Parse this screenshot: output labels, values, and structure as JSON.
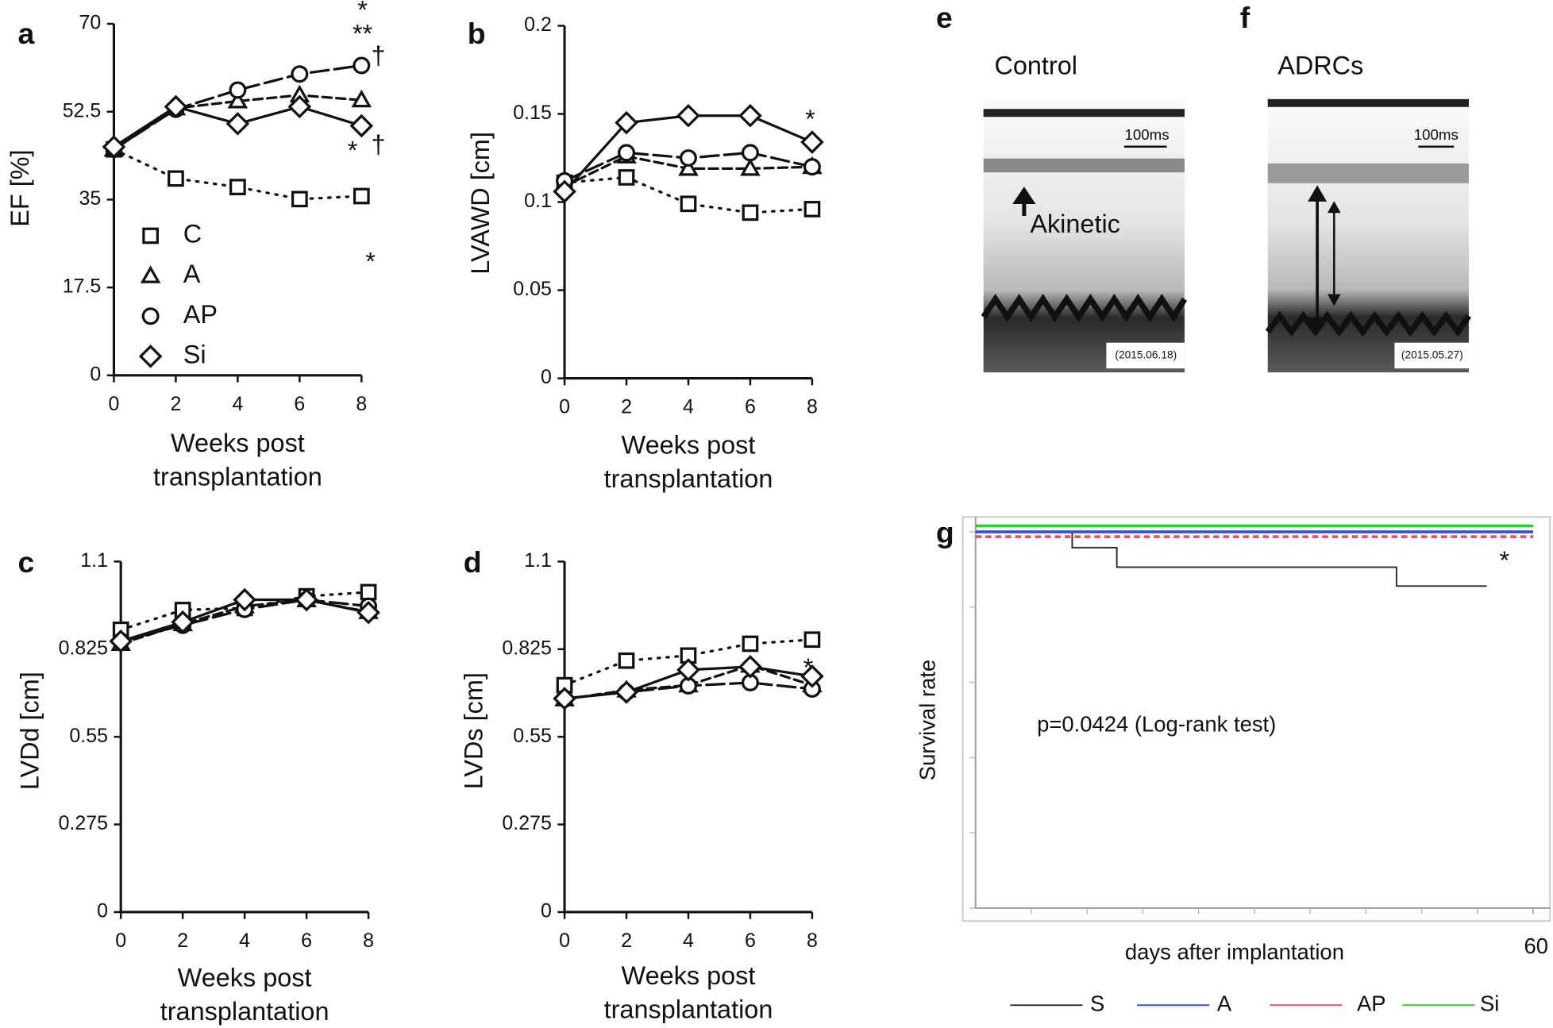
{
  "chart_data": [
    {
      "type": "line",
      "label": "a",
      "ylabel": "EF [%]",
      "xlabel": "Weeks post transplantation",
      "x": [
        0,
        2,
        4,
        6,
        8
      ],
      "xlim": [
        0,
        8
      ],
      "xticks": [
        0,
        2,
        4,
        6,
        8
      ],
      "ylim": [
        0,
        70
      ],
      "yticks": [
        0,
        17.5,
        35,
        52.5,
        70
      ],
      "legend": true,
      "series": [
        {
          "name": "C",
          "marker": "square",
          "dash": "dotted",
          "color": "#111",
          "values": [
            45,
            39.2,
            37.5,
            35.1,
            35.7
          ]
        },
        {
          "name": "A",
          "marker": "triangle",
          "dash": "dashed",
          "color": "#111",
          "values": [
            45,
            53.2,
            54.6,
            55.8,
            54.8
          ]
        },
        {
          "name": "AP",
          "marker": "circle",
          "dash": "longdash",
          "color": "#111",
          "values": [
            45,
            53,
            56.8,
            60,
            61.7
          ]
        },
        {
          "name": "Si",
          "marker": "diamond",
          "dash": "solid",
          "color": "#111",
          "values": [
            45.5,
            53.5,
            50.1,
            53.5,
            49.7
          ]
        }
      ],
      "annotations": [
        "*",
        "**",
        "†",
        "*",
        "†",
        "*"
      ]
    },
    {
      "type": "line",
      "label": "b",
      "ylabel": "LVAWD [cm]",
      "xlabel": "Weeks post transplantation",
      "x": [
        0,
        2,
        4,
        6,
        8
      ],
      "xlim": [
        0,
        8
      ],
      "xticks": [
        0,
        2,
        4,
        6,
        8
      ],
      "ylim": [
        0,
        0.2
      ],
      "yticks": [
        0,
        0.05,
        0.1,
        0.15,
        0.2
      ],
      "legend": false,
      "series": [
        {
          "name": "C",
          "marker": "square",
          "dash": "dotted",
          "color": "#111",
          "values": [
            0.111,
            0.114,
            0.099,
            0.094,
            0.096
          ]
        },
        {
          "name": "A",
          "marker": "triangle",
          "dash": "dashed",
          "color": "#111",
          "values": [
            0.109,
            0.126,
            0.119,
            0.119,
            0.12
          ]
        },
        {
          "name": "AP",
          "marker": "circle",
          "dash": "longdash",
          "color": "#111",
          "values": [
            0.112,
            0.128,
            0.125,
            0.128,
            0.12
          ]
        },
        {
          "name": "Si",
          "marker": "diamond",
          "dash": "solid",
          "color": "#111",
          "values": [
            0.106,
            0.145,
            0.149,
            0.149,
            0.134
          ]
        }
      ],
      "annotations": [
        "*"
      ]
    },
    {
      "type": "line",
      "label": "c",
      "ylabel": "LVDd [cm]",
      "xlabel": "Weeks post transplantation",
      "x": [
        0,
        2,
        4,
        6,
        8
      ],
      "xlim": [
        0,
        8
      ],
      "xticks": [
        0,
        2,
        4,
        6,
        8
      ],
      "ylim": [
        0,
        1.1
      ],
      "yticks": [
        0,
        0.275,
        0.55,
        0.825,
        1.1
      ],
      "legend": false,
      "series": [
        {
          "name": "C",
          "marker": "square",
          "dash": "dotted",
          "color": "#111",
          "values": [
            0.886,
            0.948,
            0.954,
            0.991,
            1.004
          ]
        },
        {
          "name": "A",
          "marker": "triangle",
          "dash": "dashed",
          "color": "#111",
          "values": [
            0.842,
            0.904,
            0.96,
            0.979,
            0.942
          ]
        },
        {
          "name": "AP",
          "marker": "circle",
          "dash": "longdash",
          "color": "#111",
          "values": [
            0.85,
            0.9,
            0.95,
            0.98,
            0.96
          ]
        },
        {
          "name": "Si",
          "marker": "diamond",
          "dash": "solid",
          "color": "#111",
          "values": [
            0.85,
            0.91,
            0.98,
            0.98,
            0.94
          ]
        }
      ],
      "annotations": []
    },
    {
      "type": "line",
      "label": "d",
      "ylabel": "LVDs [cm]",
      "xlabel": "Weeks post transplantation",
      "x": [
        0,
        2,
        4,
        6,
        8
      ],
      "xlim": [
        0,
        8
      ],
      "xticks": [
        0,
        2,
        4,
        6,
        8
      ],
      "ylim": [
        0,
        1.1
      ],
      "yticks": [
        0,
        0.275,
        0.55,
        0.825,
        1.1
      ],
      "legend": false,
      "series": [
        {
          "name": "C",
          "marker": "square",
          "dash": "dotted",
          "color": "#111",
          "values": [
            0.712,
            0.789,
            0.805,
            0.842,
            0.855
          ]
        },
        {
          "name": "A",
          "marker": "triangle",
          "dash": "dashed",
          "color": "#111",
          "values": [
            0.668,
            0.696,
            0.712,
            0.774,
            0.712
          ]
        },
        {
          "name": "AP",
          "marker": "circle",
          "dash": "longdash",
          "color": "#111",
          "values": [
            0.67,
            0.69,
            0.71,
            0.72,
            0.7
          ]
        },
        {
          "name": "Si",
          "marker": "diamond",
          "dash": "solid",
          "color": "#111",
          "values": [
            0.67,
            0.69,
            0.76,
            0.77,
            0.74
          ]
        }
      ],
      "annotations": [
        "*"
      ]
    },
    {
      "type": "step",
      "label": "g",
      "ylabel": "Survival rate",
      "xlabel": "days after implantation",
      "xlim": [
        0,
        60
      ],
      "xticks": [
        60
      ],
      "ylim": [
        0,
        1
      ],
      "series": [
        {
          "name": "S",
          "color": "#333333",
          "dash": "solid",
          "x": [
            0,
            10.4,
            15.2,
            45.3,
            55
          ],
          "values": [
            1,
            0.958,
            0.906,
            0.856,
            0.856
          ]
        },
        {
          "name": "A",
          "color": "#3355cc",
          "dash": "solid",
          "x": [
            0,
            60
          ],
          "values": [
            1,
            1
          ]
        },
        {
          "name": "AP",
          "color": "#e8506a",
          "dash": "dashed",
          "x": [
            0,
            60
          ],
          "values": [
            1,
            1
          ]
        },
        {
          "name": "Si",
          "color": "#2bd12b",
          "dash": "solid",
          "x": [
            0,
            60
          ],
          "values": [
            1,
            1
          ]
        }
      ],
      "annotations": [
        "*",
        "p=0.0424 (Log-rank test)"
      ]
    }
  ],
  "images": [
    {
      "label": "e",
      "title": "Control",
      "scale": "100ms",
      "note": "Akinetic",
      "date": "(2015.06.18)"
    },
    {
      "label": "f",
      "title": "ADRCs",
      "scale": "100ms",
      "date": "(2015.05.27)"
    }
  ]
}
